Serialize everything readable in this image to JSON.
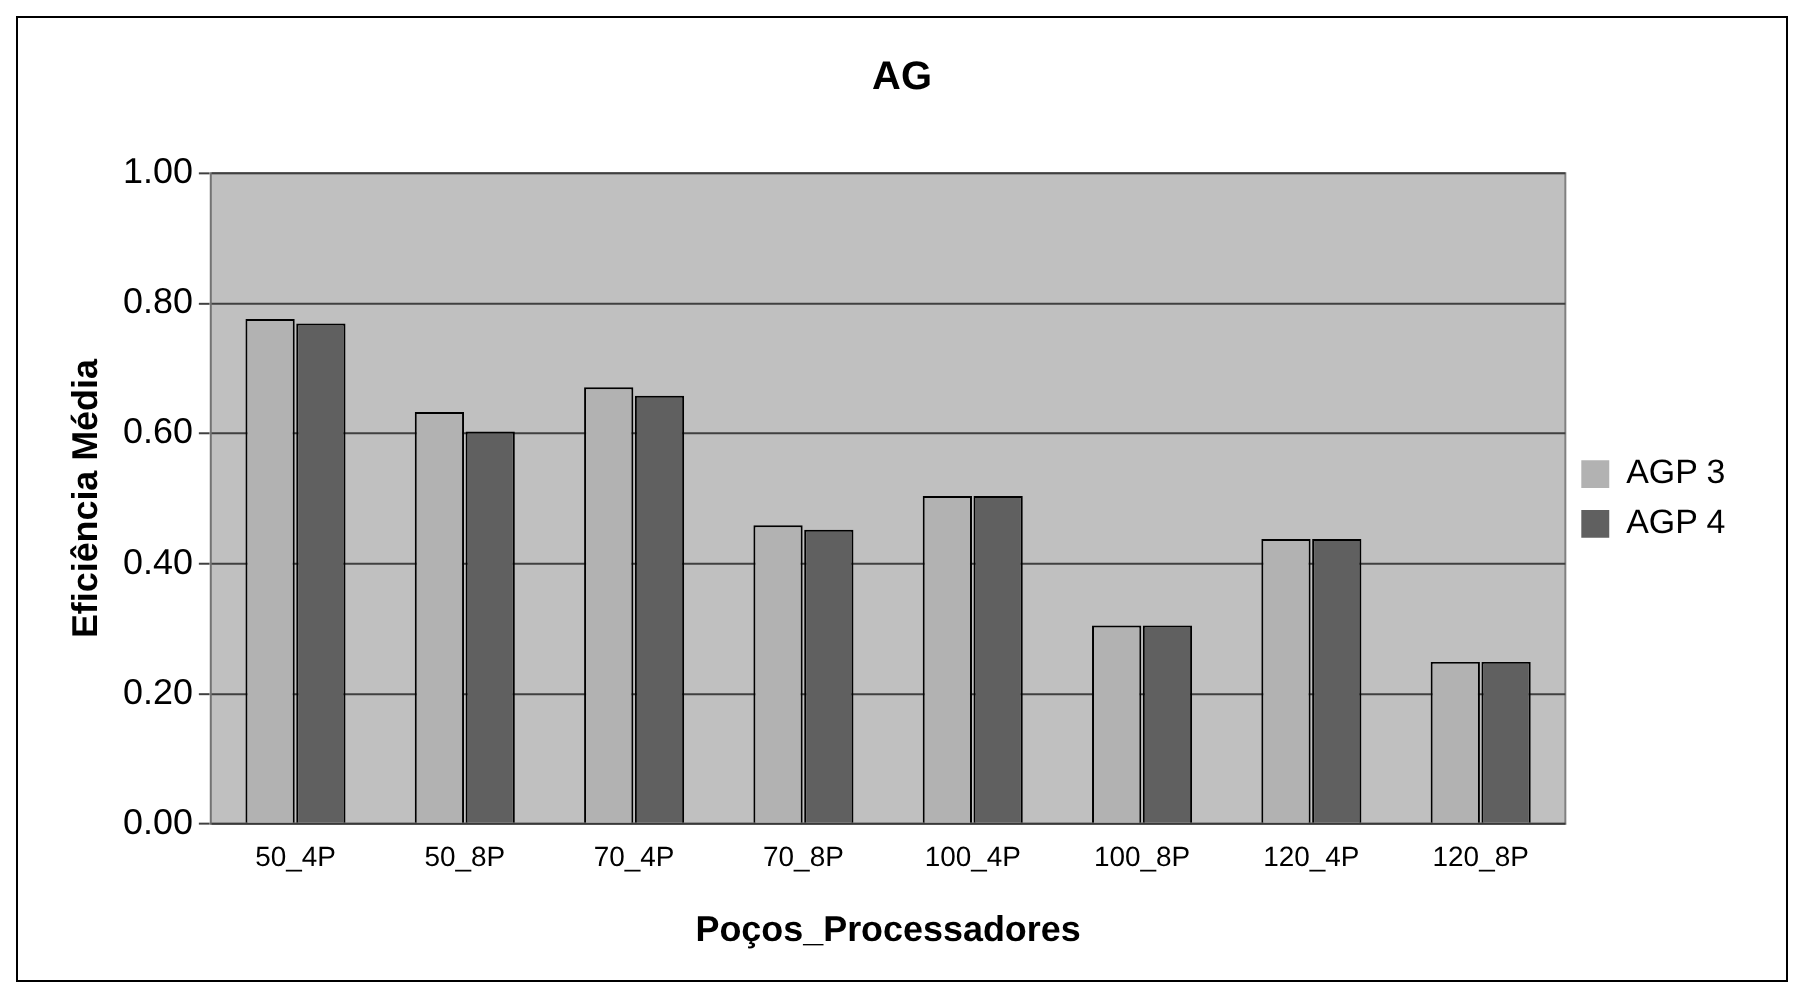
{
  "chart_data": {
    "type": "bar",
    "title": "AG",
    "xlabel": "Poços_Processadores",
    "ylabel": "Eficiência Média",
    "categories": [
      "50_4P",
      "50_8P",
      "70_4P",
      "70_8P",
      "100_4P",
      "100_8P",
      "120_4P",
      "120_8P"
    ],
    "series": [
      {
        "name": "AGP 3",
        "color": "#b2b2b2",
        "values": [
          0.776,
          0.633,
          0.671,
          0.459,
          0.504,
          0.305,
          0.438,
          0.249
        ]
      },
      {
        "name": "AGP 4",
        "color": "#606060",
        "values": [
          0.769,
          0.603,
          0.658,
          0.452,
          0.504,
          0.305,
          0.438,
          0.249
        ]
      }
    ],
    "ylim": [
      0,
      1
    ],
    "yticks": [
      {
        "value": 0,
        "label": "0.00"
      },
      {
        "value": 0.2,
        "label": "0.20"
      },
      {
        "value": 0.4,
        "label": "0.40"
      },
      {
        "value": 0.6,
        "label": "0.60"
      },
      {
        "value": 0.8,
        "label": "0.80"
      },
      {
        "value": 1,
        "label": "1.00"
      }
    ],
    "grid": "y",
    "legend": "right"
  }
}
